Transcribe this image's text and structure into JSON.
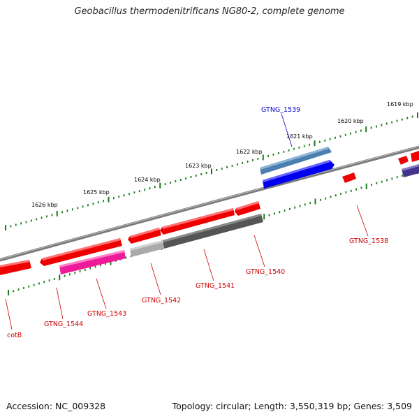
{
  "title": "Geobacillus thermodenitrificans NG80-2, complete genome",
  "footer": {
    "accession": "Accession: NC_009328",
    "topology": "Topology: circular; Length: 3,550,319 bp; Genes: 3,509"
  },
  "colors": {
    "backbone": "#888888",
    "tick": "#1a7a1a",
    "gene_red": "#ee0000",
    "gene_blue": "#0000ee",
    "gene_steel": "#4a7fb0",
    "gene_magenta": "#ee1a99",
    "gene_gray": "#555555",
    "gene_lightgray": "#aaaaaa",
    "gene_purple": "#44338a",
    "label_red": "#cc0000",
    "label_blue": "#0000cc"
  },
  "kbp_labels": [
    "1619 kbp",
    "1620 kbp",
    "1621 kbp",
    "1622 kbp",
    "1623 kbp",
    "1624 kbp",
    "1625 kbp",
    "1626 kbp"
  ],
  "gene_labels": {
    "g1539": "GTNG_1539",
    "g1538": "GTNG_1538",
    "g1540": "GTNG_1540",
    "g1541": "GTNG_1541",
    "g1542": "GTNG_1542",
    "g1543": "GTNG_1543",
    "g1544": "GTNG_1544",
    "cotb": "cotB"
  }
}
